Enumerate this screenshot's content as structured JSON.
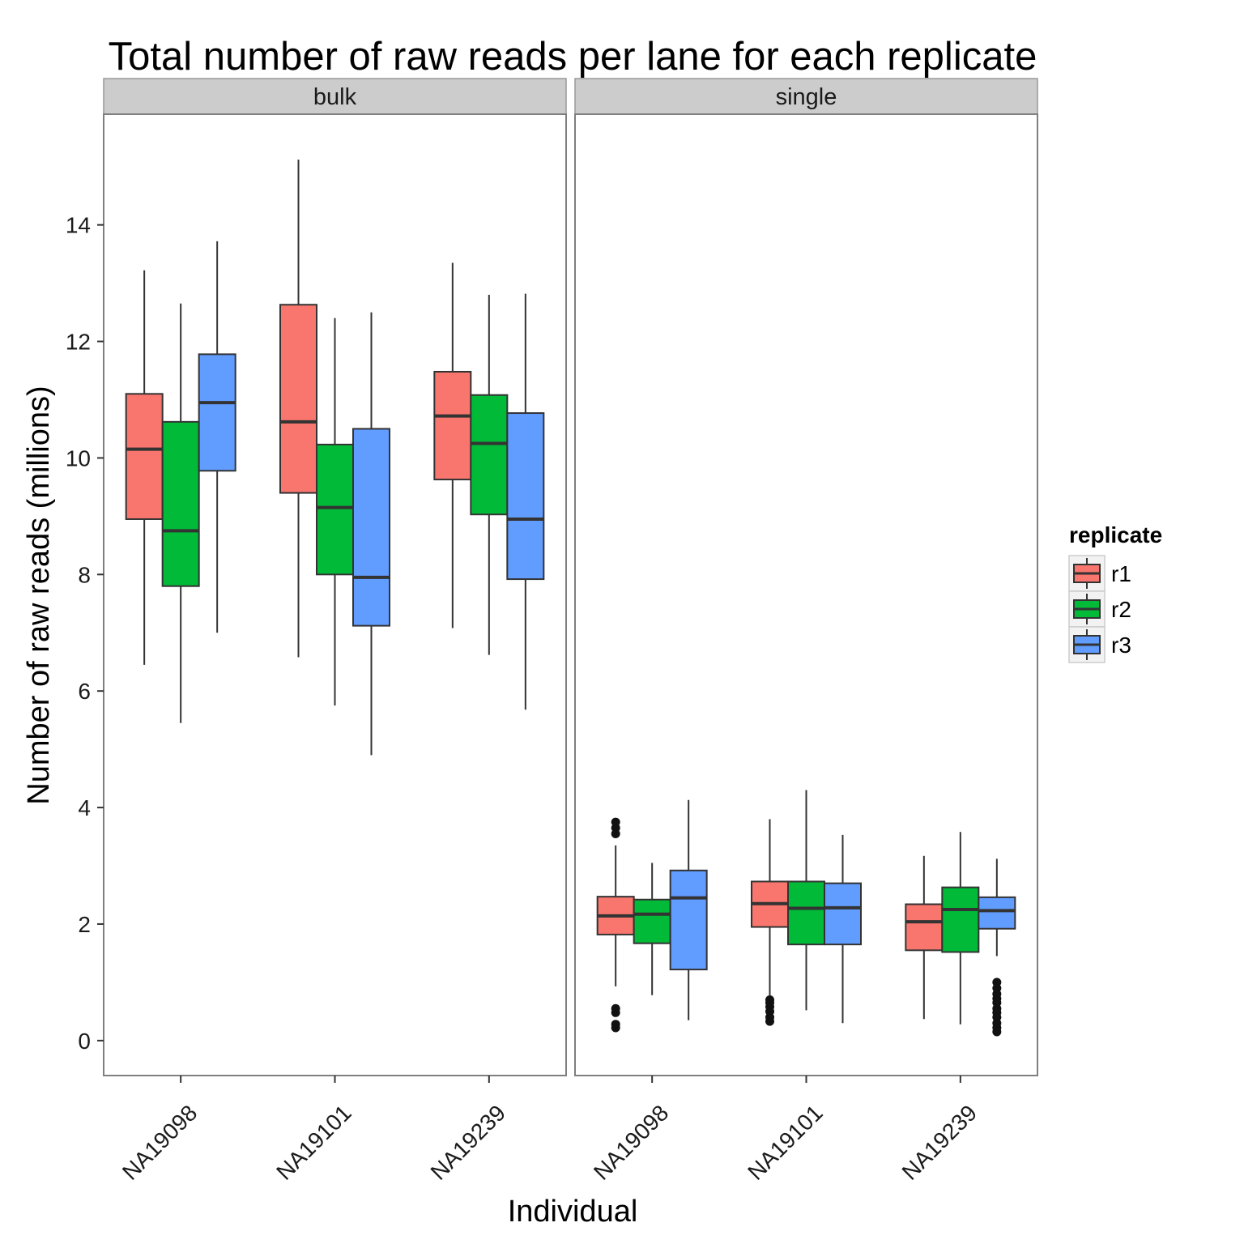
{
  "chart_data": {
    "type": "boxplot",
    "title": "Total number of raw reads per lane for each replicate",
    "xlabel": "Individual",
    "ylabel": "Number of raw reads (millions)",
    "ylim": [
      -0.6,
      15.9
    ],
    "yticks": [
      0,
      2,
      4,
      6,
      8,
      10,
      12,
      14
    ],
    "grid": false,
    "legend": {
      "title": "replicate",
      "position": "right",
      "entries": [
        {
          "label": "r1",
          "color": "#F8766D"
        },
        {
          "label": "r2",
          "color": "#00BA38"
        },
        {
          "label": "r3",
          "color": "#619CFF"
        }
      ]
    },
    "categories": [
      "NA19098",
      "NA19101",
      "NA19239"
    ],
    "facets": [
      {
        "name": "bulk",
        "groups": [
          {
            "individual": "NA19098",
            "boxes": [
              {
                "replicate": "r1",
                "lower_whisker": 6.45,
                "q1": 8.95,
                "median": 10.15,
                "q3": 11.1,
                "upper_whisker": 13.22,
                "outliers": []
              },
              {
                "replicate": "r2",
                "lower_whisker": 5.45,
                "q1": 7.8,
                "median": 8.75,
                "q3": 10.62,
                "upper_whisker": 12.65,
                "outliers": []
              },
              {
                "replicate": "r3",
                "lower_whisker": 7.0,
                "q1": 9.78,
                "median": 10.95,
                "q3": 11.78,
                "upper_whisker": 13.72,
                "outliers": []
              }
            ]
          },
          {
            "individual": "NA19101",
            "boxes": [
              {
                "replicate": "r1",
                "lower_whisker": 6.58,
                "q1": 9.4,
                "median": 10.62,
                "q3": 12.63,
                "upper_whisker": 15.12,
                "outliers": []
              },
              {
                "replicate": "r2",
                "lower_whisker": 5.75,
                "q1": 8.0,
                "median": 9.15,
                "q3": 10.23,
                "upper_whisker": 12.4,
                "outliers": []
              },
              {
                "replicate": "r3",
                "lower_whisker": 4.9,
                "q1": 7.12,
                "median": 7.95,
                "q3": 10.5,
                "upper_whisker": 12.5,
                "outliers": []
              }
            ]
          },
          {
            "individual": "NA19239",
            "boxes": [
              {
                "replicate": "r1",
                "lower_whisker": 7.08,
                "q1": 9.63,
                "median": 10.72,
                "q3": 11.48,
                "upper_whisker": 13.35,
                "outliers": []
              },
              {
                "replicate": "r2",
                "lower_whisker": 6.62,
                "q1": 9.03,
                "median": 10.25,
                "q3": 11.08,
                "upper_whisker": 12.8,
                "outliers": []
              },
              {
                "replicate": "r3",
                "lower_whisker": 5.68,
                "q1": 7.92,
                "median": 8.95,
                "q3": 10.77,
                "upper_whisker": 12.82,
                "outliers": []
              }
            ]
          }
        ]
      },
      {
        "name": "single",
        "groups": [
          {
            "individual": "NA19098",
            "boxes": [
              {
                "replicate": "r1",
                "lower_whisker": 0.93,
                "q1": 1.82,
                "median": 2.14,
                "q3": 2.47,
                "upper_whisker": 3.35,
                "outliers": [
                  0.22,
                  0.28,
                  0.48,
                  0.55,
                  3.55,
                  3.65,
                  3.75
                ]
              },
              {
                "replicate": "r2",
                "lower_whisker": 0.78,
                "q1": 1.67,
                "median": 2.17,
                "q3": 2.42,
                "upper_whisker": 3.05,
                "outliers": []
              },
              {
                "replicate": "r3",
                "lower_whisker": 0.35,
                "q1": 1.22,
                "median": 2.45,
                "q3": 2.92,
                "upper_whisker": 4.13,
                "outliers": []
              }
            ]
          },
          {
            "individual": "NA19101",
            "boxes": [
              {
                "replicate": "r1",
                "lower_whisker": 0.75,
                "q1": 1.95,
                "median": 2.35,
                "q3": 2.73,
                "upper_whisker": 3.8,
                "outliers": [
                  0.33,
                  0.4,
                  0.5,
                  0.58,
                  0.65,
                  0.7
                ]
              },
              {
                "replicate": "r2",
                "lower_whisker": 0.52,
                "q1": 1.65,
                "median": 2.27,
                "q3": 2.73,
                "upper_whisker": 4.3,
                "outliers": []
              },
              {
                "replicate": "r3",
                "lower_whisker": 0.3,
                "q1": 1.65,
                "median": 2.28,
                "q3": 2.7,
                "upper_whisker": 3.53,
                "outliers": []
              }
            ]
          },
          {
            "individual": "NA19239",
            "boxes": [
              {
                "replicate": "r1",
                "lower_whisker": 0.37,
                "q1": 1.55,
                "median": 2.04,
                "q3": 2.34,
                "upper_whisker": 3.17,
                "outliers": []
              },
              {
                "replicate": "r2",
                "lower_whisker": 0.28,
                "q1": 1.52,
                "median": 2.25,
                "q3": 2.63,
                "upper_whisker": 3.58,
                "outliers": []
              },
              {
                "replicate": "r3",
                "lower_whisker": 1.45,
                "q1": 1.92,
                "median": 2.23,
                "q3": 2.46,
                "upper_whisker": 3.12,
                "outliers": [
                  0.15,
                  0.22,
                  0.3,
                  0.4,
                  0.48,
                  0.55,
                  0.65,
                  0.72,
                  0.8,
                  0.9,
                  1.0
                ]
              }
            ]
          }
        ]
      }
    ]
  }
}
